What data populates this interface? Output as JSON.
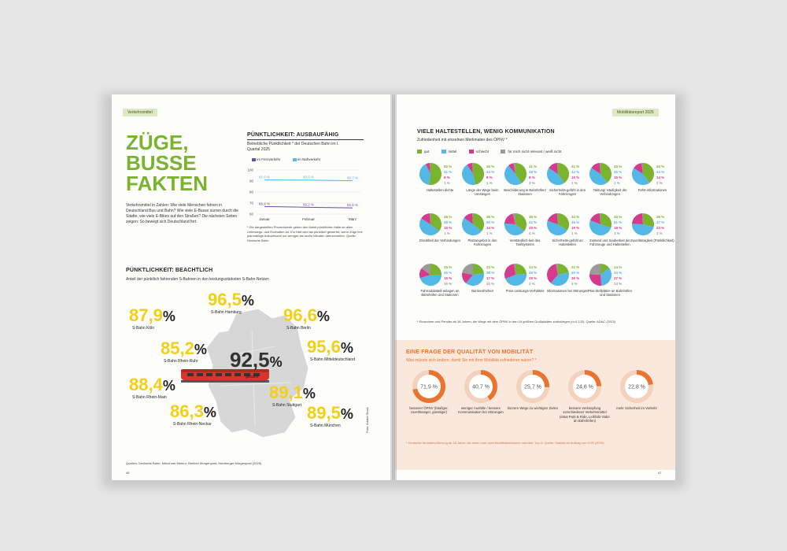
{
  "left_page": {
    "tab": "Verkehrsmittel",
    "title": [
      "ZÜGE,",
      "BUSSE",
      "FAKTEN"
    ],
    "intro": "Verkehrsmittel in Zahlen: Wie viele Menschen fahren in Deutschland Bus und Bahn? Wie viele E-Busse surren durch die Städte, wie viele E-Bikes auf den Straßen? Die nächsten Seiten zeigen: So bewegt sich Deutschland fort.",
    "section1": {
      "heading": "PÜNKTLICHKEIT: AUSBAUFÄHIG",
      "subtitle": "Betriebliche Pünktlichkeit * der Deutschen Bahn im I. Quartal 2025",
      "legend": [
        "im Fernverkehr",
        "im Nahverkehr"
      ],
      "footnote": "* Die dargestellten Prozentwerte geben den Anteil pünktlicher Halte an allen Unterwegs- und Endhalten an. Ein Halt wird als pünktlich gewertet, wenn Züge ihre planmäßige Ankunftszeit um weniger als sechs Minuten überschreiten. Quelle: Deutsche Bahn"
    },
    "section2": {
      "heading": "PÜNKTLICHKEIT: BEACHTLICH",
      "subtitle": "Anteil der pünktlich fahrenden S-Bahnen in den leistungsstärksten S-Bahn-Netzen",
      "cities": [
        {
          "value": "87,9",
          "name": "S-Bahn Köln"
        },
        {
          "value": "96,5",
          "name": "S-Bahn Hamburg"
        },
        {
          "value": "96,6",
          "name": "S-Bahn Berlin"
        },
        {
          "value": "85,2",
          "name": "S-Bahn Rhein-Ruhr"
        },
        {
          "value": "95,6",
          "name": "S-Bahn Mitteldeutschland"
        },
        {
          "value": "92,5",
          "name": "gesamt"
        },
        {
          "value": "88,4",
          "name": "S-Bahn Rhein-Main"
        },
        {
          "value": "89,1",
          "name": "S-Bahn Stuttgart"
        },
        {
          "value": "86,3",
          "name": "S-Bahn Rhein-Neckar"
        },
        {
          "value": "89,5",
          "name": "S-Bahn München"
        }
      ],
      "pct_sign": "%",
      "source": "Quellen: Deutsche Bahn; Münchner Merkur; Berliner Morgenpost; Hamburger Morgenpost (2025)"
    },
    "photo_credit": "Foto: Adobe Stock",
    "page_number": "46"
  },
  "chart_data": {
    "type": "line",
    "categories": [
      "Januar",
      "Februar",
      "März"
    ],
    "series": [
      {
        "name": "im Fernverkehr",
        "values": [
          66.9,
          66.2,
          65.6
        ],
        "labels": [
          "66,9 %",
          "66,2 %",
          "65,6 %"
        ],
        "color": "#6a4ea0"
      },
      {
        "name": "im Nahverkehr",
        "values": [
          91.0,
          90.9,
          90.3
        ],
        "labels": [
          "91,0 %",
          "90,9 %",
          "90,3 %"
        ],
        "color": "#53b8e5"
      }
    ],
    "yticks": [
      "100",
      "90",
      "80",
      "70",
      "60"
    ],
    "ylim": [
      60,
      100
    ]
  },
  "right_page": {
    "tab": "Mobilitätsreport 2025",
    "heading": "VIELE HALTESTELLEN, WENIG KOMMUNIKATION",
    "subtitle": "Zufriedenheit mit einzelnen Merkmalen des ÖPNV *",
    "legend": [
      {
        "label": "gut",
        "color": "#7ab32e"
      },
      {
        "label": "mittel",
        "color": "#53b8e5"
      },
      {
        "label": "schlecht",
        "color": "#d63a8c"
      },
      {
        "label": "für mich nicht relevant / weiß nicht",
        "color": "#9b9b9b"
      }
    ],
    "pies": [
      {
        "label": "Haltestellen-dichte",
        "values": [
          "52 %",
          "41 %",
          "6 %",
          "1 %"
        ]
      },
      {
        "label": "Länge der Wege beim Umsteigen",
        "values": [
          "46 %",
          "44 %",
          "8 %",
          "1 %"
        ]
      },
      {
        "label": "Beschilderung in Bahnhöfen/ Stationen",
        "values": [
          "41 %",
          "48 %",
          "8 %",
          "3 %"
        ]
      },
      {
        "label": "Sicherheits-gefühl in den Fahrzeugen",
        "values": [
          "41 %",
          "44 %",
          "15 %",
          "1 %"
        ]
      },
      {
        "label": "Taktung/ Häufigkeit der Verbindungen",
        "values": [
          "40 %",
          "45 %",
          "15 %",
          "1 %"
        ]
      },
      {
        "label": "Fahrt-informationen",
        "values": [
          "40 %",
          "44 %",
          "14 %",
          "2 %"
        ]
      },
      {
        "label": "Direktheit der Verbindungen",
        "values": [
          "36 %",
          "48 %",
          "15 %",
          "1 %"
        ]
      },
      {
        "label": "Platzangebot in den Fahrzeugen",
        "values": [
          "36 %",
          "50 %",
          "14 %",
          "1 %"
        ]
      },
      {
        "label": "Verständlich-keit des Tarifsystems",
        "values": [
          "36 %",
          "41 %",
          "20 %",
          "4 %"
        ]
      },
      {
        "label": "Sicherheits-gefühl an Haltestellen",
        "values": [
          "34 %",
          "46 %",
          "19 %",
          "1 %"
        ]
      },
      {
        "label": "Zustand und Sauberkeit der Fahrzeuge und Haltestellen",
        "values": [
          "30 %",
          "51 %",
          "18 %",
          "1 %"
        ]
      },
      {
        "label": "Zuverlässigkeit (Pünktlichkeit)",
        "values": [
          "29 %",
          "47 %",
          "23 %",
          "1 %"
        ]
      },
      {
        "label": "Fahrradabstell-anlagen an Bahnhöfen und Stationen",
        "values": [
          "25 %",
          "45 %",
          "15 %",
          "15 %"
        ]
      },
      {
        "label": "Barrierefreiheit",
        "values": [
          "23 %",
          "38 %",
          "17 %",
          "22 %"
        ]
      },
      {
        "label": "Preis-Leistungs-Verhältnis",
        "values": [
          "24 %",
          "45 %",
          "29 %",
          "2 %"
        ]
      },
      {
        "label": "Informationen bei Störungen",
        "values": [
          "22 %",
          "40 %",
          "36 %",
          "3 %"
        ]
      },
      {
        "label": "Pkw-Stellplätze an Bahnhöfen und Stationen",
        "values": [
          "14 %",
          "34 %",
          "27 %",
          "24 %"
        ]
      }
    ],
    "pie_footnote": "* Einwohner und Pendler ab 18 Jahren, die Wege mit dem ÖPNV in den 15 größten Großstädten zurücklegen (n=4.132). Quelle: ADAC (2023)",
    "box": {
      "heading": "EINE FRAGE DER QUALITÄT VON MOBILITÄT",
      "subtitle": "Was müsste sich ändern, damit Sie mit Ihrer Mobilität zufriedener wären? *",
      "rings": [
        {
          "value": "71,9 %",
          "pct": 71.9,
          "label": "besserer ÖPNV (häufiger, zuverlässiger, günstiger)"
        },
        {
          "value": "40,7 %",
          "pct": 40.7,
          "label": "weniger Ausfälle / bessere Kommunikation bei Störungen"
        },
        {
          "value": "25,7 %",
          "pct": 25.7,
          "label": "kürzere Wege zu wichtigen Zielen"
        },
        {
          "value": "24,6 %",
          "pct": 24.6,
          "label": "bessere Verknüpfung verschiedener Verkehrsmittel (etwa Park & Ride, Leihfahr-räder an Bahnhöfen)"
        },
        {
          "value": "22,8 %",
          "pct": 22.8,
          "label": "mehr Sicherheit im Verkehr"
        }
      ],
      "footnote": "* Deutsche Wohnbevölkerung ab 18 Jahre, die einen oder zwei Mobilitätswünsche nannten. Top-5. Quelle: Statista im Auftrag von DVR (2025)"
    },
    "page_number": "47"
  },
  "colors": {
    "green": "#7ab32e",
    "yellow": "#f3cf16",
    "orange": "#e8742f",
    "pink": "#d63a8c",
    "blue": "#53b8e5",
    "grey": "#9b9b9b"
  }
}
